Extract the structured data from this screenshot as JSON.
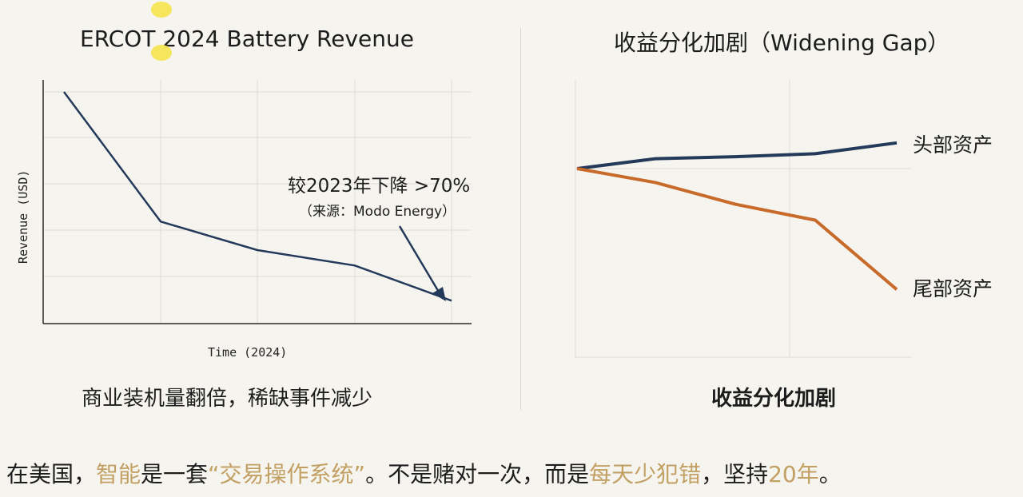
{
  "left_panel": {
    "title": "ERCOT 2024 Battery Revenue",
    "caption": "商业装机量翻倍，稀缺事件减少"
  },
  "right_panel": {
    "title": "收益分化加剧（Widening Gap）",
    "caption": "收益分化加剧"
  },
  "bottom_text": {
    "parts": [
      {
        "text": "在美国，",
        "highlight": false
      },
      {
        "text": "智能",
        "highlight": true
      },
      {
        "text": "是一套",
        "highlight": false
      },
      {
        "text": "“交易操作系统”",
        "highlight": true
      },
      {
        "text": "。不是赌对一次，而是",
        "highlight": false
      },
      {
        "text": "每天少犯错",
        "highlight": true
      },
      {
        "text": "，坚持",
        "highlight": false
      },
      {
        "text": "20年",
        "highlight": true
      },
      {
        "text": "。",
        "highlight": false
      }
    ]
  },
  "colors": {
    "line_navy": "#243a5a",
    "line_orange": "#c86a2a",
    "highlight_gold": "#c2a063"
  },
  "chart_data": [
    {
      "type": "line",
      "title": "ERCOT 2024 Battery Revenue",
      "xlabel": "Time (2024)",
      "ylabel": "Revenue (USD)",
      "x": [
        0,
        1,
        2,
        3,
        4
      ],
      "series": [
        {
          "values": [
            100,
            41,
            28,
            21,
            5
          ]
        }
      ],
      "ylim": [
        0,
        100
      ],
      "grid": true,
      "annotation": {
        "text": "较2023年下降 >70%",
        "subtext": "（来源：Modo Energy）"
      }
    },
    {
      "type": "line",
      "title": "收益分化加剧（Widening Gap）",
      "x": [
        0,
        1,
        2,
        3,
        4
      ],
      "series": [
        {
          "name": "头部资产",
          "values": [
            0,
            2,
            2.4,
            3,
            5.2
          ]
        },
        {
          "name": "尾部资产",
          "values": [
            0,
            -2.8,
            -7.2,
            -10.4,
            -24.4
          ]
        }
      ],
      "grid": true
    }
  ]
}
